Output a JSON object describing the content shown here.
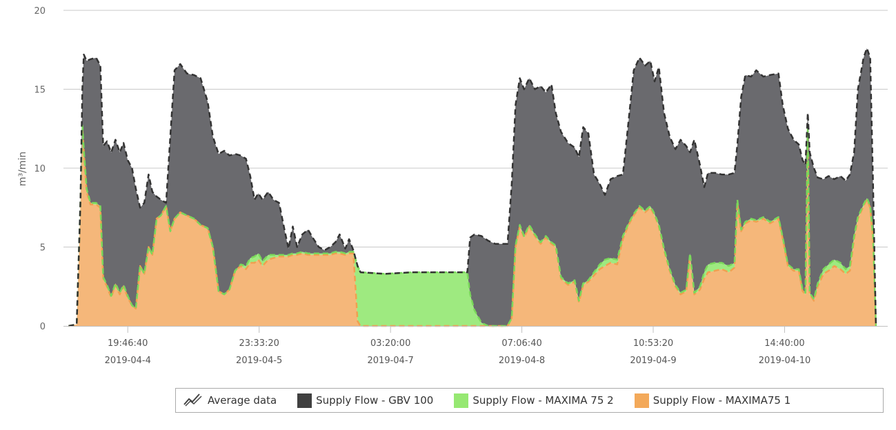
{
  "chart_data": {
    "type": "area",
    "stacked": true,
    "title": "",
    "xlabel": "",
    "ylabel": "m³/min",
    "x_unit": "hours since 2019-04-04 19:46:40",
    "xlim": [
      -13.6,
      160.7
    ],
    "ylim": [
      0,
      20
    ],
    "yticks": [
      0,
      5,
      10,
      15,
      20
    ],
    "grid": true,
    "legend_position": "bottom-right",
    "xticks": [
      {
        "value": 0,
        "time": "19:46:40",
        "date": "2019-04-4"
      },
      {
        "value": 27.78,
        "time": "23:33:20",
        "date": "2019-04-5"
      },
      {
        "value": 55.56,
        "time": "03:20:00",
        "date": "2019-04-7"
      },
      {
        "value": 83.33,
        "time": "07:06:40",
        "date": "2019-04-8"
      },
      {
        "value": 111.11,
        "time": "10:53:20",
        "date": "2019-04-9"
      },
      {
        "value": 138.89,
        "time": "14:40:00",
        "date": "2019-04-10"
      }
    ],
    "legend": [
      {
        "label": "Average data",
        "icon": "trend-lines-icon"
      },
      {
        "label": "Supply Flow - GBV 100",
        "color": "#404040"
      },
      {
        "label": "Supply Flow - MAXIMA 75 2",
        "color": "#96e872"
      },
      {
        "label": "Supply Flow - MAXIMA75 1",
        "color": "#f3a95a"
      }
    ],
    "x": [
      -12.5,
      -10.8,
      -10.0,
      -9.6,
      -9.3,
      -8.7,
      -7.9,
      -6.7,
      -5.8,
      -5.2,
      -4.4,
      -3.5,
      -2.6,
      -1.7,
      -0.9,
      0,
      0.9,
      1.7,
      2.6,
      3.5,
      4.4,
      5.2,
      6.1,
      7.0,
      8.1,
      9.0,
      9.9,
      11.1,
      12.5,
      14.0,
      15.4,
      16.9,
      18.0,
      19.2,
      20.4,
      21.5,
      22.7,
      23.9,
      25.0,
      25.9,
      26.8,
      27.6,
      28.5,
      29.7,
      30.8,
      32.0,
      33.2,
      34.0,
      34.9,
      35.8,
      36.9,
      38.1,
      39.3,
      40.4,
      41.6,
      42.8,
      43.9,
      44.8,
      46.0,
      46.8,
      47.7,
      48.6,
      49.2,
      54.4,
      60.2,
      66.0,
      71.8,
      72.4,
      73.3,
      74.8,
      76.2,
      77.7,
      80.3,
      81.2,
      82.0,
      82.9,
      83.8,
      84.9,
      86.1,
      87.3,
      88.4,
      89.6,
      90.5,
      91.6,
      93.1,
      94.5,
      95.4,
      96.3,
      97.4,
      98.6,
      99.8,
      100.9,
      102.1,
      103.5,
      104.7,
      105.9,
      107.0,
      108.2,
      109.4,
      110.5,
      111.4,
      112.3,
      113.4,
      114.6,
      115.8,
      116.9,
      118.1,
      118.9,
      119.8,
      121.0,
      121.9,
      122.7,
      124.2,
      125.6,
      127.1,
      128.3,
      128.9,
      129.7,
      130.6,
      131.8,
      132.9,
      134.4,
      135.8,
      137.6,
      138.5,
      139.6,
      140.8,
      141.9,
      142.7,
      143.3,
      143.8,
      144.2,
      145.1,
      145.9,
      147.1,
      148.2,
      149.4,
      150.7,
      151.8,
      152.7,
      153.6,
      154.4,
      155.6,
      156.3,
      157.0,
      157.6,
      158.2
    ],
    "series": [
      {
        "name": "Supply Flow - MAXIMA75 1",
        "color": "#f5b77a",
        "line": "#f0a050",
        "values": [
          0,
          0.1,
          7.8,
          12.5,
          11.0,
          8.5,
          7.7,
          7.7,
          7.5,
          3.0,
          2.5,
          1.8,
          2.6,
          2.0,
          2.5,
          1.8,
          1.3,
          1.1,
          3.8,
          3.3,
          5.0,
          4.5,
          6.8,
          7.0,
          7.6,
          6.0,
          6.8,
          7.2,
          7.0,
          6.8,
          6.4,
          6.2,
          5.0,
          2.2,
          2.0,
          2.3,
          3.5,
          3.8,
          3.6,
          4.0,
          4.0,
          4.2,
          3.8,
          4.2,
          4.3,
          4.4,
          4.4,
          4.4,
          4.5,
          4.5,
          4.6,
          4.5,
          4.5,
          4.5,
          4.5,
          4.5,
          4.6,
          4.6,
          4.5,
          4.6,
          4.6,
          0.3,
          0,
          0,
          0,
          0,
          0,
          0,
          0,
          0,
          0,
          0,
          0,
          0.5,
          5.0,
          6.3,
          5.6,
          6.3,
          5.7,
          5.2,
          5.6,
          5.2,
          5.0,
          3.0,
          2.6,
          2.8,
          1.5,
          2.6,
          2.8,
          3.2,
          3.6,
          3.8,
          4.0,
          3.9,
          5.5,
          6.4,
          7.0,
          7.5,
          7.2,
          7.5,
          7.0,
          6.3,
          4.8,
          3.5,
          2.5,
          2.0,
          2.2,
          4.5,
          2.0,
          2.3,
          3.0,
          3.4,
          3.5,
          3.6,
          3.4,
          3.7,
          7.8,
          6.0,
          6.5,
          6.7,
          6.6,
          6.8,
          6.5,
          6.8,
          5.5,
          3.8,
          3.5,
          3.5,
          2.2,
          2.0,
          12.2,
          2.0,
          1.6,
          2.5,
          3.3,
          3.5,
          3.8,
          3.6,
          3.3,
          3.5,
          5.5,
          6.8,
          7.6,
          8.0,
          7.5,
          5.5,
          0
        ]
      },
      {
        "name": "Supply Flow - MAXIMA 75 2",
        "color": "#9eea80",
        "line": "#7ad85a",
        "values": [
          0,
          0,
          0.2,
          0.2,
          0.2,
          0.2,
          0.1,
          0.1,
          0.1,
          0.1,
          0.1,
          0.1,
          0.1,
          0.1,
          0.1,
          0.1,
          0,
          0,
          0,
          0,
          0,
          0,
          0,
          0,
          0,
          0,
          0,
          0,
          0,
          0,
          0,
          0,
          0,
          0,
          0,
          0,
          0,
          0.1,
          0.2,
          0.3,
          0.4,
          0.4,
          0.3,
          0.3,
          0.2,
          0.1,
          0.1,
          0.1,
          0.1,
          0.1,
          0.1,
          0.1,
          0.1,
          0.1,
          0.1,
          0.1,
          0.1,
          0.1,
          0.1,
          0.1,
          0.1,
          3.5,
          3.4,
          3.3,
          3.4,
          3.4,
          3.4,
          2.0,
          1.0,
          0.2,
          0,
          0,
          0,
          0,
          0.1,
          0.1,
          0.1,
          0.1,
          0.1,
          0.1,
          0.1,
          0.1,
          0.1,
          0.1,
          0.1,
          0.1,
          0.1,
          0.1,
          0.1,
          0.2,
          0.3,
          0.4,
          0.3,
          0.3,
          0.2,
          0.1,
          0.1,
          0.1,
          0.1,
          0.1,
          0.1,
          0.1,
          0.1,
          0.1,
          0.1,
          0.1,
          0.1,
          0.1,
          0.1,
          0.2,
          0.4,
          0.5,
          0.5,
          0.4,
          0.4,
          0.3,
          0.2,
          0.1,
          0.1,
          0.1,
          0.1,
          0.1,
          0.1,
          0.1,
          0.1,
          0.1,
          0.1,
          0.1,
          0.1,
          0.1,
          0.3,
          0.1,
          0.1,
          0.2,
          0.3,
          0.4,
          0.4,
          0.4,
          0.3,
          0.3,
          0.2,
          0.1,
          0.1,
          0.1,
          0.1,
          0.2,
          0
        ]
      },
      {
        "name": "Supply Flow - GBV 100",
        "color": "#6a6a6e",
        "line": "#333333",
        "values": [
          0,
          0,
          0,
          2.3,
          6.0,
          8.1,
          9.1,
          9.2,
          8.9,
          8.3,
          9.1,
          9.1,
          9.1,
          8.9,
          9.0,
          8.6,
          8.7,
          7.6,
          3.7,
          4.5,
          4.6,
          4.0,
          1.4,
          1.0,
          0.2,
          6.0,
          9.4,
          9.4,
          9.0,
          9.1,
          9.3,
          8.0,
          7.0,
          8.7,
          9.1,
          8.5,
          7.4,
          6.9,
          6.8,
          5.2,
          3.6,
          3.8,
          3.9,
          4.0,
          3.5,
          3.3,
          1.5,
          0.4,
          1.7,
          0.4,
          1.1,
          1.5,
          0.9,
          0.4,
          0.2,
          0.4,
          0.6,
          1.1,
          0.3,
          0.8,
          0.1,
          0,
          0,
          0,
          0,
          0,
          0,
          3.6,
          4.8,
          5.5,
          5.4,
          5.2,
          5.2,
          8.5,
          8.9,
          9.3,
          9.3,
          9.3,
          9.2,
          9.9,
          9.1,
          10.0,
          8.4,
          9.2,
          8.9,
          8.4,
          9.1,
          9.9,
          9.3,
          6.2,
          5.1,
          4.1,
          5.0,
          5.3,
          3.9,
          6.5,
          9.1,
          9.4,
          9.2,
          9.2,
          8.4,
          10.0,
          8.6,
          8.4,
          8.6,
          9.7,
          9.1,
          6.4,
          9.7,
          7.7,
          5.4,
          5.8,
          5.7,
          5.6,
          5.8,
          5.7,
          3.5,
          8.4,
          9.3,
          9.0,
          9.5,
          8.9,
          9.3,
          9.1,
          8.4,
          8.6,
          8.2,
          7.9,
          8.2,
          8.1,
          1.0,
          8.9,
          8.3,
          6.7,
          5.7,
          5.6,
          5.1,
          5.5,
          5.6,
          5.8,
          5.3,
          8.1,
          9.3,
          9.5,
          9.4,
          3.3,
          0
        ]
      }
    ]
  }
}
